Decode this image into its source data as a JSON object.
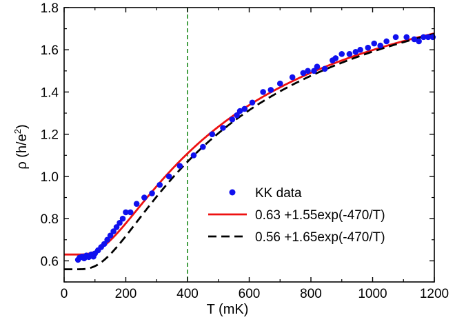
{
  "chart_data": {
    "type": "scatter",
    "xlabel": "T (mK)",
    "ylabel_main": "ρ  (h/e",
    "ylabel_sup": "2",
    "ylabel_close": ")",
    "xlim": [
      0,
      1200
    ],
    "ylim": [
      0.5,
      1.8
    ],
    "xticks": [
      0,
      200,
      400,
      600,
      800,
      1000,
      1200
    ],
    "xtick_labels": [
      "0",
      "200",
      "400",
      "600",
      "800",
      "1000",
      "1200"
    ],
    "yticks": [
      0.6,
      0.8,
      1.0,
      1.2,
      1.4,
      1.6,
      1.8
    ],
    "ytick_labels": [
      "0.6",
      "0.8",
      "1.0",
      "1.2",
      "1.4",
      "1.6",
      "1.8"
    ],
    "grid": false,
    "legend_position": "lower-right",
    "reference_line": {
      "x": 400,
      "style": "dashed",
      "color": "#1a8a1a"
    },
    "series": [
      {
        "name": "KK data",
        "kind": "scatter",
        "color": "#1010ee",
        "points": [
          [
            45,
            0.605
          ],
          [
            50,
            0.615
          ],
          [
            58,
            0.62
          ],
          [
            65,
            0.612
          ],
          [
            72,
            0.625
          ],
          [
            80,
            0.618
          ],
          [
            88,
            0.63
          ],
          [
            95,
            0.62
          ],
          [
            100,
            0.635
          ],
          [
            110,
            0.65
          ],
          [
            120,
            0.665
          ],
          [
            130,
            0.68
          ],
          [
            140,
            0.7
          ],
          [
            150,
            0.72
          ],
          [
            160,
            0.74
          ],
          [
            170,
            0.76
          ],
          [
            180,
            0.78
          ],
          [
            190,
            0.8
          ],
          [
            200,
            0.83
          ],
          [
            215,
            0.83
          ],
          [
            235,
            0.87
          ],
          [
            260,
            0.9
          ],
          [
            285,
            0.92
          ],
          [
            310,
            0.96
          ],
          [
            340,
            1.0
          ],
          [
            375,
            1.05
          ],
          [
            420,
            1.1
          ],
          [
            450,
            1.14
          ],
          [
            480,
            1.2
          ],
          [
            515,
            1.23
          ],
          [
            545,
            1.27
          ],
          [
            560,
            1.29
          ],
          [
            570,
            1.31
          ],
          [
            585,
            1.32
          ],
          [
            610,
            1.35
          ],
          [
            645,
            1.4
          ],
          [
            670,
            1.41
          ],
          [
            700,
            1.44
          ],
          [
            740,
            1.47
          ],
          [
            775,
            1.49
          ],
          [
            790,
            1.5
          ],
          [
            810,
            1.5
          ],
          [
            820,
            1.52
          ],
          [
            845,
            1.51
          ],
          [
            870,
            1.55
          ],
          [
            880,
            1.56
          ],
          [
            900,
            1.58
          ],
          [
            925,
            1.58
          ],
          [
            945,
            1.59
          ],
          [
            960,
            1.6
          ],
          [
            985,
            1.61
          ],
          [
            1005,
            1.63
          ],
          [
            1025,
            1.62
          ],
          [
            1045,
            1.64
          ],
          [
            1075,
            1.66
          ],
          [
            1110,
            1.66
          ],
          [
            1135,
            1.65
          ],
          [
            1150,
            1.64
          ],
          [
            1165,
            1.66
          ],
          [
            1180,
            1.66
          ],
          [
            1195,
            1.66
          ]
        ]
      },
      {
        "name": "0.63 +1.55exp(-470/T)",
        "kind": "line",
        "color": "#ee1111",
        "dash": "",
        "a": 0.63,
        "b": 1.55,
        "c": 470
      },
      {
        "name": "0.56 +1.65exp(-470/T)",
        "kind": "line",
        "color": "#000000",
        "dash": "12,7",
        "a": 0.56,
        "b": 1.65,
        "c": 470
      }
    ]
  }
}
